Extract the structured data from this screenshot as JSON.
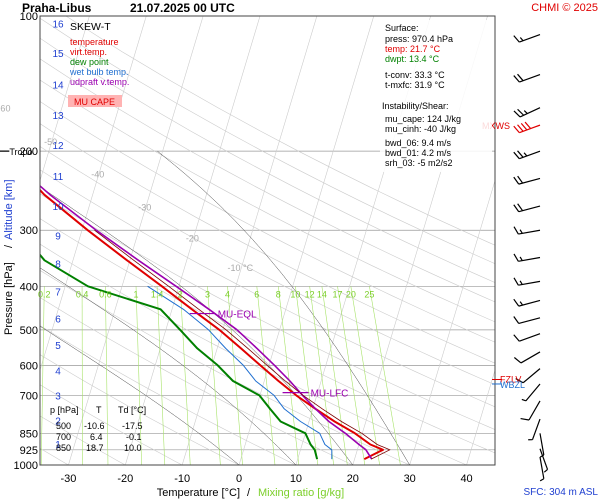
{
  "header": {
    "station": "Praha-Libus",
    "datetime": "21.07.2025 00 UTC",
    "credit": "CHMI © 2025"
  },
  "legend": {
    "title": "SKEW-T",
    "items": [
      {
        "label": "temperature",
        "color": "#e00000"
      },
      {
        "label": "virt.temp.",
        "color": "#e00000"
      },
      {
        "label": "dew point",
        "color": "#008000"
      },
      {
        "label": "wet bulb temp.",
        "color": "#1f6fd0"
      },
      {
        "label": "udpraft v.temp.",
        "color": "#9b00b0"
      }
    ],
    "badge": "MU CAPE"
  },
  "surface": {
    "title": "Surface:",
    "press": "press: 970.4 hPa",
    "temp": "temp: 21.7 °C",
    "dwpt": "dwpt: 13.4 °C",
    "tconv": "t-conv: 33.3 °C",
    "tmxfc": "t-mxfc: 31.9 °C"
  },
  "instability": {
    "title": "Instability/Shear:",
    "mu_cape": "mu_cape: 124 J/kg",
    "mu_cinh": "mu_cinh: -40 J/kg",
    "bwd_06": "bwd_06: 9.4 m/s",
    "bwd_01": "bwd_01: 4.2 m/s",
    "srh_03": "srh_03: -5 m2/s2"
  },
  "level_table": {
    "headers": [
      "p [hPa]",
      "T",
      "Td [°C]"
    ],
    "rows": [
      [
        "500",
        "-10.6",
        "-17.5"
      ],
      [
        "700",
        "6.4",
        "-0.1"
      ],
      [
        "850",
        "18.7",
        "10.0"
      ]
    ]
  },
  "footer": {
    "sfc": "SFC: 304 m ASL"
  },
  "colors": {
    "temperature": "#e00000",
    "dewpoint": "#008000",
    "wetbulb": "#1f6fd0",
    "parcel": "#9b00b0",
    "mixing": "#a8e36a",
    "isotherm": "#cccccc",
    "dry_adiabat": "#cccccc",
    "moist_adiabat": "#444444",
    "isobar": "#999999",
    "altitude_axis": "#1f3fd0",
    "mixing_label": "#7ccf2a",
    "annotation": "#9b00b0",
    "tropo": "#000000",
    "mxws": "#e00000"
  },
  "chart_data": {
    "type": "line",
    "title": "Praha-Libus 21.07.2025 00 UTC",
    "xlabel": "Temperature [°C]",
    "xlabel2": "Mixing ratio [g/kg]",
    "ylabel": "Pressure [hPa]",
    "ylabel2": "Altitude [km]",
    "xlim": [
      -35,
      45
    ],
    "ylim": [
      1000,
      100
    ],
    "y_scale": "log",
    "skew": true,
    "temp_ticks": [
      -30,
      -20,
      -10,
      0,
      10,
      20,
      30,
      40
    ],
    "pressure_ticks": [
      100,
      200,
      300,
      400,
      500,
      600,
      700,
      850,
      925,
      1000
    ],
    "altitude_ticks": [
      {
        "km": 1,
        "p": 898
      },
      {
        "km": 2,
        "p": 795
      },
      {
        "km": 3,
        "p": 701
      },
      {
        "km": 4,
        "p": 616
      },
      {
        "km": 5,
        "p": 540
      },
      {
        "km": 6,
        "p": 472
      },
      {
        "km": 7,
        "p": 411
      },
      {
        "km": 8,
        "p": 356
      },
      {
        "km": 9,
        "p": 308
      },
      {
        "km": 10,
        "p": 265
      },
      {
        "km": 11,
        "p": 227
      },
      {
        "km": 12,
        "p": 194
      },
      {
        "km": 13,
        "p": 166
      },
      {
        "km": 14,
        "p": 142
      },
      {
        "km": 15,
        "p": 121
      },
      {
        "km": 16,
        "p": 104
      }
    ],
    "isotherm_labels": [
      "-80 °C",
      "-70",
      "-60",
      "-50",
      "-40",
      "-30",
      "-20",
      "-10 °C"
    ],
    "mixing_ratio_labels": [
      "0.2",
      "0.4",
      "0.6",
      "1",
      "1.4",
      "2",
      "3",
      "4",
      "6",
      "8",
      "10",
      "12",
      "14",
      "17",
      "20",
      "25"
    ],
    "series": [
      {
        "name": "temperature",
        "p": [
          970,
          925,
          900,
          850,
          800,
          750,
          700,
          650,
          600,
          550,
          500,
          450,
          400,
          350,
          300,
          250,
          200,
          180,
          160,
          140,
          120,
          100
        ],
        "t": [
          21.7,
          24.5,
          22.0,
          18.7,
          14.5,
          10.5,
          6.4,
          2.5,
          -1.5,
          -5.8,
          -10.6,
          -16.5,
          -23.0,
          -30.5,
          -39.0,
          -48.5,
          -58.0,
          -58.5,
          -56.0,
          -58.5,
          -60.0,
          -65.0
        ]
      },
      {
        "name": "dew point",
        "p": [
          970,
          925,
          900,
          850,
          800,
          750,
          700,
          650,
          600,
          550,
          500,
          450,
          400,
          350,
          300,
          250,
          200,
          180,
          160,
          140,
          120,
          100
        ],
        "t": [
          13.4,
          12.5,
          11.5,
          10.0,
          5.0,
          2.5,
          -0.1,
          -5.5,
          -9.0,
          -13.5,
          -17.5,
          -22.0,
          -36.0,
          -45.0,
          -51.0,
          -58.0,
          -67.0,
          -73.0,
          -77.0,
          -80.0,
          -86.0,
          -88.0
        ]
      },
      {
        "name": "wet bulb temp.",
        "p": [
          970,
          925,
          900,
          850,
          800,
          750,
          700,
          650,
          600,
          550,
          500,
          450,
          400
        ],
        "t": [
          16.0,
          15.5,
          14.0,
          12.5,
          8.5,
          5.0,
          2.5,
          -1.5,
          -4.5,
          -8.5,
          -12.5,
          -18.0,
          -25.5
        ]
      },
      {
        "name": "udpraft v.temp.",
        "p": [
          970,
          925,
          900,
          850,
          800,
          750,
          700,
          650,
          600,
          550,
          500,
          450,
          400,
          350,
          300,
          250,
          200,
          150,
          100
        ],
        "t": [
          23.0,
          21.5,
          20.0,
          17.0,
          13.5,
          10.5,
          7.5,
          4.5,
          1.0,
          -3.0,
          -7.5,
          -13.5,
          -20.5,
          -28.5,
          -37.5,
          -47.5,
          -58.5,
          -72.0,
          -88.0
        ]
      }
    ],
    "annotations": [
      {
        "label": "Tropo",
        "p": 200,
        "t": -58.0
      },
      {
        "label": "MU-EQL",
        "p": 460,
        "t": -13.5
      },
      {
        "label": "MU-LFC",
        "p": 690,
        "t": 7.0
      },
      {
        "label": "MXWS",
        "p": 175
      },
      {
        "label": "FZLV",
        "p": 645
      },
      {
        "label": "WBZL",
        "p": 660
      }
    ],
    "wind_barbs": [
      {
        "p": 110,
        "dir": 250,
        "kt": 15
      },
      {
        "p": 135,
        "dir": 250,
        "kt": 20
      },
      {
        "p": 160,
        "dir": 245,
        "kt": 25
      },
      {
        "p": 175,
        "dir": 250,
        "kt": 40
      },
      {
        "p": 200,
        "dir": 250,
        "kt": 25
      },
      {
        "p": 230,
        "dir": 255,
        "kt": 20
      },
      {
        "p": 265,
        "dir": 255,
        "kt": 20
      },
      {
        "p": 300,
        "dir": 260,
        "kt": 15
      },
      {
        "p": 345,
        "dir": 260,
        "kt": 15
      },
      {
        "p": 390,
        "dir": 260,
        "kt": 15
      },
      {
        "p": 430,
        "dir": 255,
        "kt": 15
      },
      {
        "p": 470,
        "dir": 255,
        "kt": 10
      },
      {
        "p": 510,
        "dir": 250,
        "kt": 10
      },
      {
        "p": 560,
        "dir": 240,
        "kt": 10
      },
      {
        "p": 610,
        "dir": 230,
        "kt": 10
      },
      {
        "p": 660,
        "dir": 220,
        "kt": 5
      },
      {
        "p": 720,
        "dir": 210,
        "kt": 10
      },
      {
        "p": 790,
        "dir": 200,
        "kt": 5
      },
      {
        "p": 850,
        "dir": 170,
        "kt": 5
      },
      {
        "p": 920,
        "dir": 160,
        "kt": 5
      },
      {
        "p": 960,
        "dir": 170,
        "kt": 5
      }
    ]
  }
}
